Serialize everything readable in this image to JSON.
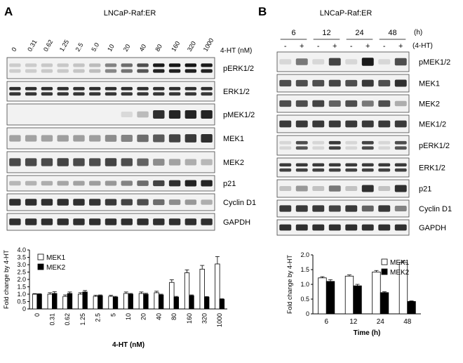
{
  "figure": {
    "panelA": {
      "letter": "A",
      "title": "LNCaP-Raf:ER",
      "doses": [
        "0",
        "0.31",
        "0.62",
        "1.25",
        "2.5",
        "5.0",
        "10",
        "20",
        "40",
        "80",
        "160",
        "320",
        "1000"
      ],
      "dose_unit": "4-HT (nM)",
      "blots": [
        {
          "label": "pERK1/2",
          "intensity": [
            0.1,
            0.1,
            0.12,
            0.12,
            0.14,
            0.18,
            0.45,
            0.55,
            0.7,
            0.95,
            0.97,
            0.97,
            0.95
          ],
          "double": true
        },
        {
          "label": "ERK1/2",
          "intensity": [
            0.85,
            0.85,
            0.85,
            0.85,
            0.85,
            0.85,
            0.85,
            0.85,
            0.85,
            0.85,
            0.85,
            0.85,
            0.85
          ],
          "double": true
        },
        {
          "label": "pMEK1/2",
          "intensity": [
            0.0,
            0.0,
            0.0,
            0.0,
            0.0,
            0.0,
            0.0,
            0.04,
            0.18,
            0.85,
            0.9,
            0.9,
            0.9
          ],
          "double": false
        },
        {
          "label": "MEK1",
          "intensity": [
            0.3,
            0.3,
            0.3,
            0.32,
            0.32,
            0.32,
            0.4,
            0.45,
            0.55,
            0.65,
            0.75,
            0.8,
            0.85
          ],
          "double": false
        },
        {
          "label": "MEK2",
          "intensity": [
            0.72,
            0.72,
            0.72,
            0.75,
            0.72,
            0.7,
            0.75,
            0.7,
            0.6,
            0.4,
            0.3,
            0.25,
            0.2
          ],
          "double": false
        },
        {
          "label": "p21",
          "intensity": [
            0.2,
            0.22,
            0.25,
            0.28,
            0.3,
            0.32,
            0.35,
            0.45,
            0.55,
            0.75,
            0.85,
            0.9,
            0.9
          ],
          "double": false
        },
        {
          "label": "Cyclin D1",
          "intensity": [
            0.85,
            0.85,
            0.85,
            0.85,
            0.85,
            0.82,
            0.8,
            0.75,
            0.7,
            0.55,
            0.4,
            0.35,
            0.25
          ],
          "double": false
        },
        {
          "label": "GAPDH",
          "intensity": [
            0.85,
            0.85,
            0.85,
            0.85,
            0.85,
            0.85,
            0.85,
            0.85,
            0.85,
            0.85,
            0.85,
            0.85,
            0.85
          ],
          "double": false
        }
      ]
    },
    "panelB": {
      "letter": "B",
      "title": "LNCaP-Raf:ER",
      "timepoints": [
        "6",
        "12",
        "24",
        "48"
      ],
      "time_unit": "(h)",
      "treatment_label": "(4-HT)",
      "treatment": [
        "-",
        "+",
        "-",
        "+",
        "-",
        "+",
        "-",
        "+"
      ],
      "blots": [
        {
          "label": "pMEK1/2",
          "intensity": [
            0.05,
            0.5,
            0.05,
            0.75,
            0.05,
            0.95,
            0.05,
            0.7
          ],
          "double": false
        },
        {
          "label": "MEK1",
          "intensity": [
            0.7,
            0.7,
            0.7,
            0.75,
            0.7,
            0.8,
            0.7,
            0.85
          ],
          "double": false
        },
        {
          "label": "MEK2",
          "intensity": [
            0.7,
            0.7,
            0.75,
            0.6,
            0.7,
            0.5,
            0.7,
            0.25
          ],
          "double": false
        },
        {
          "label": "MEK1/2",
          "intensity": [
            0.8,
            0.8,
            0.8,
            0.8,
            0.8,
            0.8,
            0.8,
            0.8
          ],
          "double": false
        },
        {
          "label": "pERK1/2",
          "intensity": [
            0.05,
            0.7,
            0.05,
            0.8,
            0.05,
            0.75,
            0.05,
            0.7
          ],
          "double": true
        },
        {
          "label": "ERK1/2",
          "intensity": [
            0.8,
            0.8,
            0.8,
            0.8,
            0.8,
            0.8,
            0.8,
            0.8
          ],
          "double": true
        },
        {
          "label": "p21",
          "intensity": [
            0.15,
            0.35,
            0.15,
            0.5,
            0.15,
            0.85,
            0.15,
            0.85
          ],
          "double": false
        },
        {
          "label": "Cyclin D1",
          "intensity": [
            0.8,
            0.8,
            0.8,
            0.75,
            0.8,
            0.6,
            0.8,
            0.45
          ],
          "double": false
        },
        {
          "label": "GAPDH",
          "intensity": [
            0.85,
            0.85,
            0.85,
            0.85,
            0.85,
            0.85,
            0.85,
            0.85
          ],
          "double": false
        }
      ]
    }
  },
  "chart_data": [
    {
      "type": "bar",
      "categories": [
        "0",
        "0.31",
        "0.62",
        "1.25",
        "2.5",
        "5",
        "10",
        "20",
        "40",
        "80",
        "160",
        "320",
        "1000"
      ],
      "series": [
        {
          "name": "MEK1",
          "values": [
            1.0,
            1.0,
            0.85,
            1.0,
            0.85,
            0.85,
            1.05,
            1.05,
            1.1,
            1.8,
            2.45,
            2.7,
            3.05
          ],
          "errors": [
            0.04,
            0.1,
            0.1,
            0.1,
            0.08,
            0.08,
            0.1,
            0.1,
            0.1,
            0.18,
            0.2,
            0.25,
            0.5
          ],
          "fill": "#ffffff"
        },
        {
          "name": "MEK2",
          "values": [
            1.0,
            1.05,
            1.05,
            1.15,
            0.9,
            0.8,
            1.0,
            1.0,
            0.95,
            0.8,
            0.9,
            0.8,
            0.65
          ],
          "errors": [
            0.03,
            0.12,
            0.1,
            0.1,
            0.05,
            0.05,
            0.05,
            0.06,
            0.05,
            0.05,
            0.05,
            0.04,
            0.04
          ],
          "fill": "#000000"
        }
      ],
      "xlabel": "4-HT (nM)",
      "ylabel": "Fold change by 4-HT",
      "ylim": [
        0,
        4.0
      ],
      "yticks": [
        "0",
        "0.5",
        "1.0",
        "1.5",
        "2.0",
        "2.5",
        "3.0",
        "3.5",
        "4.0"
      ],
      "legend": "top-left",
      "grid": false
    },
    {
      "type": "bar",
      "categories": [
        "6",
        "12",
        "24",
        "48"
      ],
      "series": [
        {
          "name": "MEK1",
          "values": [
            1.22,
            1.28,
            1.42,
            1.74
          ],
          "errors": [
            0.04,
            0.04,
            0.05,
            0.06
          ],
          "fill": "#ffffff"
        },
        {
          "name": "MEK2",
          "values": [
            1.1,
            0.95,
            0.72,
            0.42
          ],
          "errors": [
            0.06,
            0.05,
            0.03,
            0.02
          ],
          "fill": "#000000"
        }
      ],
      "xlabel": "Time (h)",
      "ylabel": "Fold change by 4-HT",
      "ylim": [
        0,
        2.0
      ],
      "yticks": [
        "0",
        "0.5",
        "1.0",
        "1.5",
        "2.0"
      ],
      "legend": "top-right",
      "grid": false
    }
  ]
}
